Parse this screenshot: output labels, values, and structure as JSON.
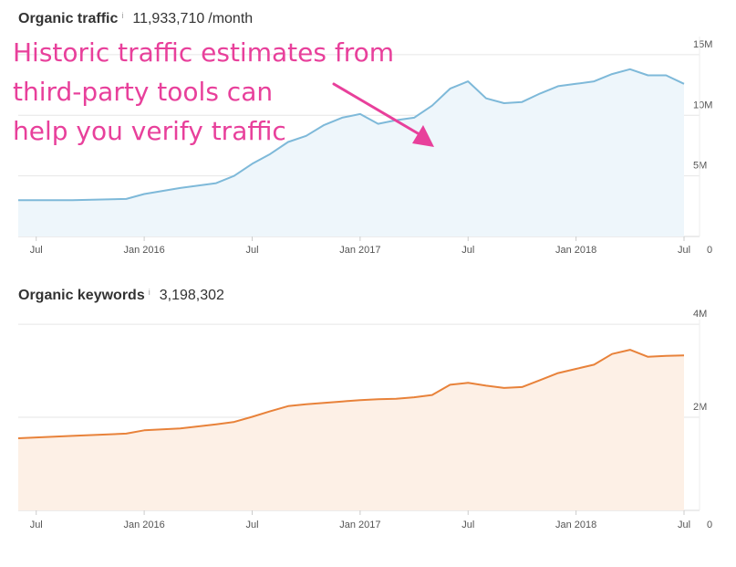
{
  "traffic": {
    "label": "Organic traffic",
    "info_icon": "info-icon",
    "value": "11,933,710",
    "unit": "/month"
  },
  "keywords": {
    "label": "Organic keywords",
    "info_icon": "info-icon",
    "value": "3,198,302"
  },
  "annotation": {
    "lines": [
      "Historic traffic estimates from",
      "third-party tools can",
      "help you verify traffic"
    ],
    "color": "#e8409b"
  },
  "chart_data": [
    {
      "type": "area",
      "title": "Organic traffic",
      "xlabel": "",
      "ylabel": "",
      "x_start": "2015-06",
      "x_end": "2018-07",
      "x_ticks": [
        {
          "label": "Jul",
          "date": "2015-07"
        },
        {
          "label": "Jan 2016",
          "date": "2016-01"
        },
        {
          "label": "Jul",
          "date": "2016-07"
        },
        {
          "label": "Jan 2017",
          "date": "2017-01"
        },
        {
          "label": "Jul",
          "date": "2017-07"
        },
        {
          "label": "Jan 2018",
          "date": "2018-01"
        },
        {
          "label": "Jul",
          "date": "2018-07"
        }
      ],
      "y_ticks": [
        {
          "label": "0",
          "value": 0
        },
        {
          "label": "5M",
          "value": 5000000
        },
        {
          "label": "10M",
          "value": 10000000
        },
        {
          "label": "15M",
          "value": 15000000
        }
      ],
      "ylim": [
        0,
        16500000
      ],
      "grid": true,
      "line_color": "#7eb9d9",
      "fill_color": "#eef6fb",
      "series": [
        {
          "x": [
            "2015-06",
            "2015-09",
            "2015-12",
            "2016-01",
            "2016-03",
            "2016-05",
            "2016-06",
            "2016-07",
            "2016-08",
            "2016-09",
            "2016-10",
            "2016-11",
            "2016-12",
            "2017-01",
            "2017-02",
            "2017-03",
            "2017-04",
            "2017-05",
            "2017-06",
            "2017-07",
            "2017-08",
            "2017-09",
            "2017-10",
            "2017-11",
            "2017-12",
            "2018-01",
            "2018-02",
            "2018-03",
            "2018-04",
            "2018-05",
            "2018-06",
            "2018-07"
          ],
          "values": [
            3000000,
            3000000,
            3100000,
            3500000,
            4000000,
            4400000,
            5000000,
            6000000,
            6800000,
            7800000,
            8300000,
            9200000,
            9800000,
            10100000,
            9300000,
            9600000,
            9800000,
            10800000,
            12200000,
            12800000,
            11400000,
            11000000,
            11100000,
            11800000,
            12400000,
            12600000,
            12800000,
            13400000,
            13800000,
            13300000,
            13300000,
            12600000
          ]
        }
      ]
    },
    {
      "type": "area",
      "title": "Organic keywords",
      "xlabel": "",
      "ylabel": "",
      "x_start": "2015-06",
      "x_end": "2018-07",
      "x_ticks": [
        {
          "label": "Jul",
          "date": "2015-07"
        },
        {
          "label": "Jan 2016",
          "date": "2016-01"
        },
        {
          "label": "Jul",
          "date": "2016-07"
        },
        {
          "label": "Jan 2017",
          "date": "2017-01"
        },
        {
          "label": "Jul",
          "date": "2017-07"
        },
        {
          "label": "Jan 2018",
          "date": "2018-01"
        },
        {
          "label": "Jul",
          "date": "2018-07"
        }
      ],
      "y_ticks": [
        {
          "label": "0",
          "value": 0
        },
        {
          "label": "2M",
          "value": 2000000
        },
        {
          "label": "4M",
          "value": 4000000
        }
      ],
      "ylim": [
        0,
        4100000
      ],
      "grid": true,
      "line_color": "#e8823a",
      "fill_color": "#fdf0e6",
      "series": [
        {
          "x": [
            "2015-06",
            "2015-09",
            "2015-12",
            "2016-01",
            "2016-03",
            "2016-05",
            "2016-06",
            "2016-07",
            "2016-08",
            "2016-09",
            "2016-10",
            "2016-11",
            "2016-12",
            "2017-01",
            "2017-02",
            "2017-03",
            "2017-04",
            "2017-05",
            "2017-06",
            "2017-07",
            "2017-08",
            "2017-09",
            "2017-10",
            "2017-11",
            "2017-12",
            "2018-01",
            "2018-02",
            "2018-03",
            "2018-04",
            "2018-05",
            "2018-06",
            "2018-07"
          ],
          "values": [
            1550000,
            1600000,
            1650000,
            1720000,
            1760000,
            1850000,
            1900000,
            2010000,
            2130000,
            2240000,
            2280000,
            2310000,
            2340000,
            2370000,
            2390000,
            2400000,
            2430000,
            2480000,
            2700000,
            2740000,
            2680000,
            2630000,
            2650000,
            2800000,
            2950000,
            3040000,
            3130000,
            3360000,
            3450000,
            3300000,
            3320000,
            3330000
          ]
        }
      ]
    }
  ]
}
